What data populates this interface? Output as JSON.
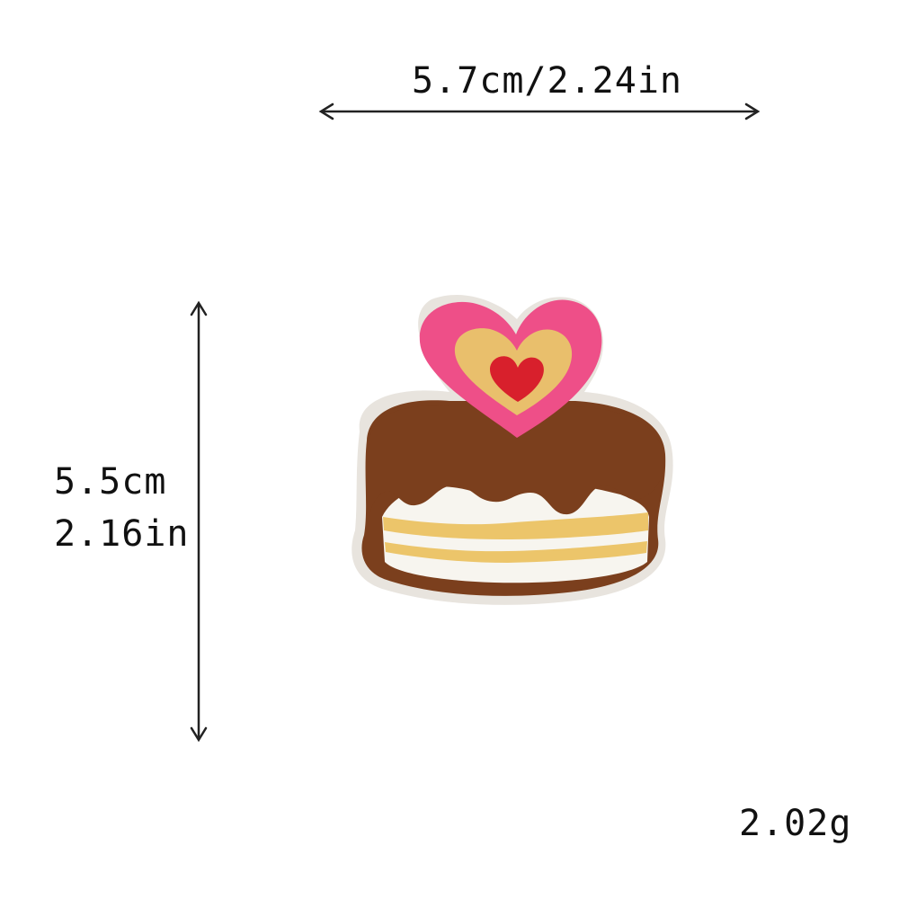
{
  "dimensions": {
    "width_label": "5.7cm/2.24in",
    "height_cm_label": "5.5cm",
    "height_in_label": "2.16in",
    "weight_label": "2.02g"
  },
  "product": {
    "name_icon": "cake-heart-patch-icon",
    "colors": {
      "background": "#ffffff",
      "heart_outer": "#ee4f88",
      "heart_mid": "#e9bf6c",
      "heart_inner": "#d8202c",
      "chocolate": "#7b3f1d",
      "cream": "#f7f5ef",
      "layer_gold": "#ecc56a",
      "felt_backing": "#e8e4de"
    }
  }
}
